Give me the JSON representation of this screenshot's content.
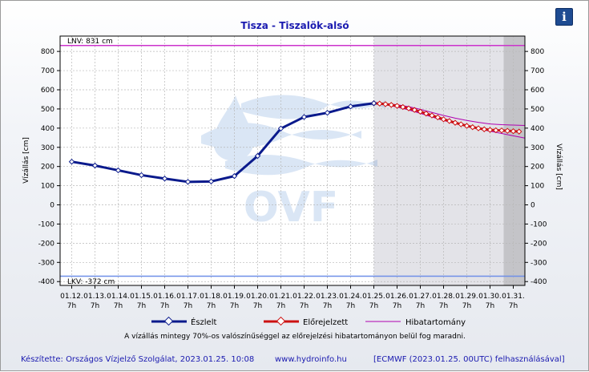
{
  "info_button": {
    "icon": "info-icon",
    "glyph": "i"
  },
  "colors": {
    "observed": "#0a1a8c",
    "forecast": "#cc1111",
    "error_band": "#b000b0",
    "limit_line": "#cc33cc",
    "lkv_line": "#6f8fe8",
    "title": "#1a1ab0",
    "forecast_bg": "#e3e3e8",
    "late_bg": "#c4c4c8"
  },
  "chart_data": {
    "type": "line",
    "title": "Tisza - Tiszalök-alsó",
    "ylabel_left": "Vízállás [cm]",
    "ylabel_right": "Vízállás [cm]",
    "ylim": [
      -420,
      880
    ],
    "yticks": [
      -400,
      -300,
      -200,
      -100,
      0,
      100,
      200,
      300,
      400,
      500,
      600,
      700,
      800
    ],
    "x_labels": [
      "01.12.",
      "01.13.",
      "01.14.",
      "01.15.",
      "01.16.",
      "01.17.",
      "01.18.",
      "01.19.",
      "01.20.",
      "01.21.",
      "01.22.",
      "01.23.",
      "01.24.",
      "01.25.",
      "01.26.",
      "01.27.",
      "01.28.",
      "01.29.",
      "01.30.",
      "01.31."
    ],
    "x_hour_label": "7h",
    "x_range": [
      -0.5,
      19.5
    ],
    "forecast_start": 13,
    "late_start": 18,
    "grid": true,
    "limits": [
      {
        "name": "LNV",
        "label": "LNV: 831 cm",
        "value": 831
      },
      {
        "name": "LKV",
        "label": "LKV: -372 cm",
        "value": -372
      }
    ],
    "series": [
      {
        "name": "Észlelt",
        "x": [
          0,
          1,
          2,
          3,
          4,
          5,
          6,
          7,
          8,
          9,
          10,
          11,
          12,
          13
        ],
        "y": [
          225,
          205,
          180,
          155,
          137,
          120,
          122,
          150,
          255,
          398,
          458,
          480,
          513,
          530
        ]
      },
      {
        "name": "Előrejelzett",
        "x": [
          13,
          13.25,
          13.5,
          13.75,
          14,
          14.25,
          14.5,
          14.75,
          15,
          15.25,
          15.5,
          15.75,
          16,
          16.25,
          16.5,
          16.75,
          17,
          17.25,
          17.5,
          17.75,
          18,
          18.25,
          18.5,
          18.75,
          19,
          19.25
        ],
        "y": [
          530,
          528,
          525,
          521,
          516,
          510,
          503,
          495,
          486,
          476,
          466,
          456,
          446,
          437,
          428,
          420,
          412,
          405,
          399,
          394,
          391,
          389,
          388,
          386,
          384,
          382
        ]
      },
      {
        "name": "Hibatartomány",
        "x": [
          13,
          13.5,
          14,
          14.5,
          15,
          15.5,
          16,
          16.5,
          17,
          17.5,
          18,
          18.5,
          19,
          19.5
        ],
        "upper": [
          530,
          528,
          522,
          512,
          498,
          482,
          466,
          452,
          440,
          430,
          422,
          418,
          416,
          414
        ],
        "lower": [
          530,
          522,
          510,
          495,
          477,
          458,
          440,
          424,
          409,
          396,
          384,
          372,
          360,
          348
        ]
      }
    ],
    "legend": [
      "Észlelt",
      "Előrejelzett",
      "Hibatartomány"
    ],
    "legend_position": "bottom",
    "note": "A vízállás mintegy 70%-os valószínűséggel az előrejelzési hibatartományon belül fog maradni."
  },
  "footer": {
    "left": "Készítette: Országos Vízjelző Szolgálat, 2023.01.25. 10:08",
    "center": "www.hydroinfo.hu",
    "right": "[ECMWF (2023.01.25. 00UTC) felhasználásával]"
  },
  "watermark": {
    "text": "OVF"
  }
}
